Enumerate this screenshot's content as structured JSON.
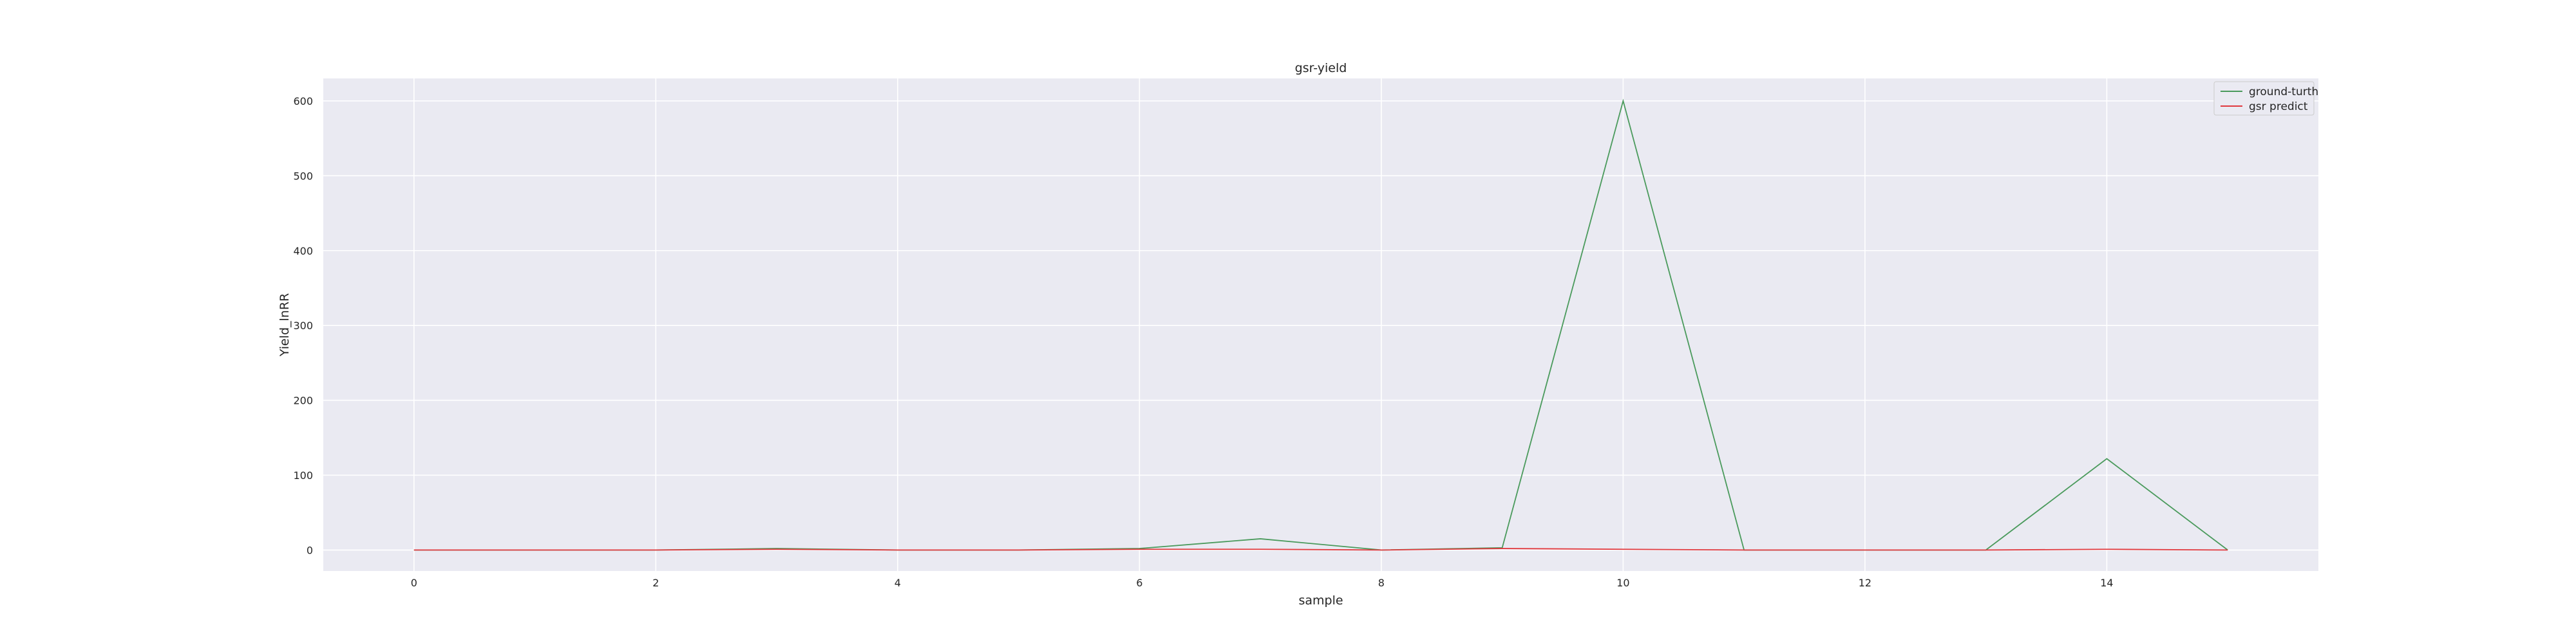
{
  "chart_data": {
    "type": "line",
    "title": "gsr-yield",
    "xlabel": "sample",
    "ylabel": "Yield_lnRR",
    "x": [
      0,
      1,
      2,
      3,
      4,
      5,
      6,
      7,
      8,
      9,
      10,
      11,
      12,
      13,
      14,
      15
    ],
    "xlim": [
      -0.75,
      15.75
    ],
    "ylim": [
      -28,
      630
    ],
    "xticks": [
      0,
      2,
      4,
      6,
      8,
      10,
      12,
      14
    ],
    "yticks": [
      0,
      100,
      200,
      300,
      400,
      500,
      600
    ],
    "grid": true,
    "legend_position": "top-right",
    "series": [
      {
        "name": "ground-turth",
        "color": "#4a9a5c",
        "values": [
          0,
          0,
          0,
          2,
          0,
          0,
          2,
          15,
          0,
          3,
          600,
          0,
          0,
          0,
          122,
          0
        ]
      },
      {
        "name": "gsr predict",
        "color": "#e0393e",
        "values": [
          0,
          0,
          0,
          1,
          0,
          0,
          1,
          1,
          0,
          2,
          1,
          0,
          0,
          0,
          1,
          0
        ]
      }
    ],
    "plot_background": "#eaeaf2",
    "grid_color": "#ffffff"
  }
}
